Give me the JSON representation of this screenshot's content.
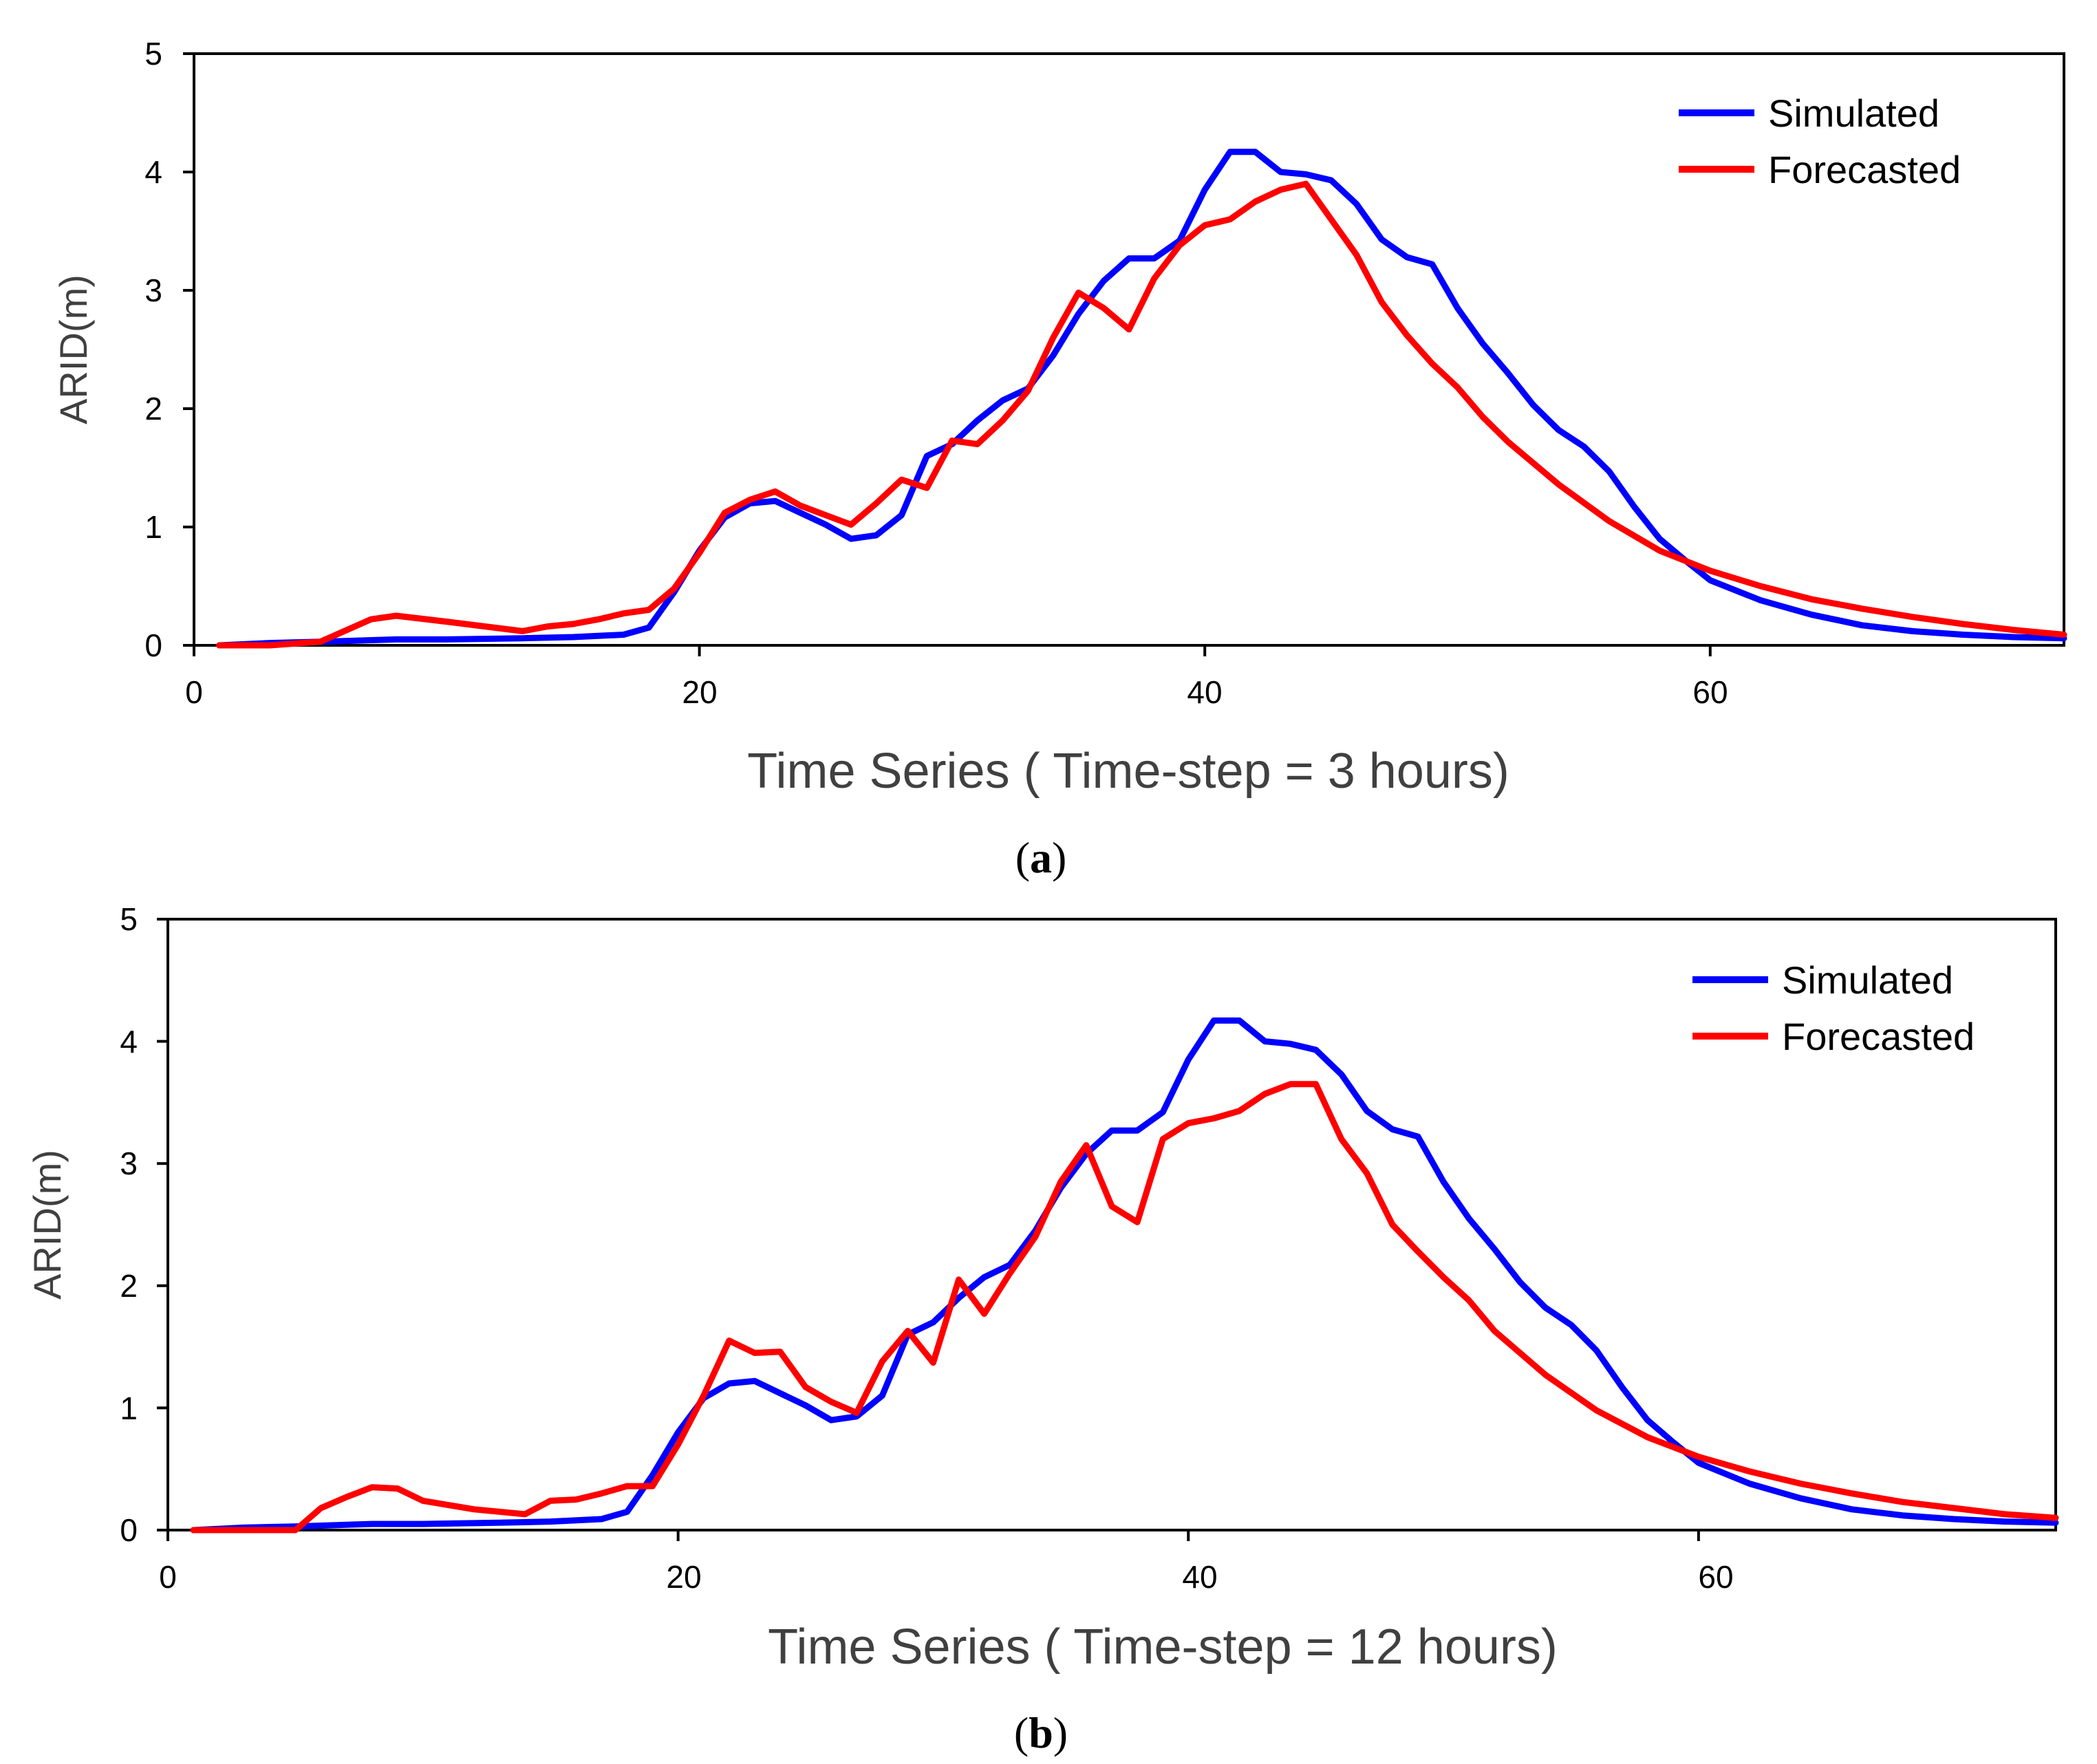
{
  "chart_data": [
    {
      "type": "line",
      "panel_label": "a",
      "xlabel": "Time Series ( Time-step =  3 hours)",
      "ylabel": "ARID(m)",
      "xlim": [
        0,
        74
      ],
      "ylim": [
        0,
        5
      ],
      "xticks": [
        0,
        20,
        40,
        60
      ],
      "yticks": [
        0,
        1,
        2,
        3,
        4,
        5
      ],
      "legend_position": "top-right",
      "series": [
        {
          "name": "Simulated",
          "color": "#0000ff",
          "x": [
            1,
            3,
            5,
            8,
            10,
            13,
            15,
            17,
            18,
            19,
            20,
            21,
            22,
            23,
            24,
            25,
            26,
            27,
            28,
            29,
            30,
            31,
            32,
            33,
            34,
            35,
            36,
            37,
            38,
            39,
            40,
            41,
            42,
            43,
            44,
            45,
            46,
            47,
            48,
            49,
            50,
            51,
            52,
            53,
            54,
            55,
            56,
            57,
            58,
            59,
            60,
            62,
            64,
            66,
            68,
            70,
            72,
            74
          ],
          "values": [
            0.0,
            0.02,
            0.03,
            0.05,
            0.05,
            0.06,
            0.07,
            0.09,
            0.15,
            0.45,
            0.8,
            1.08,
            1.2,
            1.22,
            1.12,
            1.02,
            0.9,
            0.93,
            1.1,
            1.6,
            1.7,
            1.9,
            2.07,
            2.17,
            2.45,
            2.8,
            3.08,
            3.27,
            3.27,
            3.42,
            3.85,
            4.17,
            4.17,
            4.0,
            3.98,
            3.93,
            3.73,
            3.43,
            3.28,
            3.22,
            2.85,
            2.55,
            2.3,
            2.03,
            1.82,
            1.68,
            1.47,
            1.17,
            0.9,
            0.72,
            0.55,
            0.38,
            0.26,
            0.17,
            0.12,
            0.09,
            0.07,
            0.06
          ]
        },
        {
          "name": "Forecasted",
          "color": "#ff0000",
          "x": [
            1,
            3,
            5,
            7,
            8,
            10,
            13,
            14,
            15,
            16,
            17,
            18,
            19,
            20,
            21,
            22,
            23,
            24,
            25,
            26,
            27,
            28,
            29,
            30,
            31,
            32,
            33,
            34,
            35,
            36,
            37,
            38,
            39,
            40,
            41,
            42,
            43,
            44,
            45,
            46,
            47,
            48,
            49,
            50,
            51,
            52,
            54,
            56,
            58,
            60,
            62,
            64,
            66,
            68,
            70,
            72,
            74
          ],
          "values": [
            0.0,
            0.0,
            0.03,
            0.22,
            0.25,
            0.2,
            0.12,
            0.16,
            0.18,
            0.22,
            0.27,
            0.3,
            0.48,
            0.78,
            1.12,
            1.23,
            1.3,
            1.18,
            1.1,
            1.02,
            1.2,
            1.4,
            1.33,
            1.73,
            1.7,
            1.9,
            2.15,
            2.6,
            2.98,
            2.85,
            2.67,
            3.1,
            3.38,
            3.55,
            3.6,
            3.75,
            3.85,
            3.9,
            3.6,
            3.3,
            2.9,
            2.62,
            2.38,
            2.18,
            1.93,
            1.72,
            1.36,
            1.05,
            0.8,
            0.63,
            0.5,
            0.39,
            0.31,
            0.24,
            0.18,
            0.13,
            0.09
          ]
        }
      ]
    },
    {
      "type": "line",
      "panel_label": "b",
      "xlabel": "Time Series ( Time-step =  12 hours)",
      "ylabel": "ARID(m)",
      "xlim": [
        0,
        74
      ],
      "ylim": [
        0,
        5
      ],
      "xticks": [
        0,
        20,
        40,
        60
      ],
      "yticks": [
        0,
        1,
        2,
        3,
        4,
        5
      ],
      "legend_position": "top-right",
      "series": [
        {
          "name": "Simulated",
          "color": "#0000ff",
          "x": [
            1,
            3,
            5,
            8,
            10,
            13,
            15,
            17,
            18,
            19,
            20,
            21,
            22,
            23,
            24,
            25,
            26,
            27,
            28,
            29,
            30,
            31,
            32,
            33,
            34,
            35,
            36,
            37,
            38,
            39,
            40,
            41,
            42,
            43,
            44,
            45,
            46,
            47,
            48,
            49,
            50,
            51,
            52,
            53,
            54,
            55,
            56,
            57,
            58,
            59,
            60,
            62,
            64,
            66,
            68,
            70,
            72,
            74
          ],
          "values": [
            0.0,
            0.02,
            0.03,
            0.05,
            0.05,
            0.06,
            0.07,
            0.09,
            0.15,
            0.45,
            0.8,
            1.08,
            1.2,
            1.22,
            1.12,
            1.02,
            0.9,
            0.93,
            1.1,
            1.6,
            1.7,
            1.9,
            2.07,
            2.17,
            2.45,
            2.8,
            3.08,
            3.27,
            3.27,
            3.42,
            3.85,
            4.17,
            4.17,
            4.0,
            3.98,
            3.93,
            3.73,
            3.43,
            3.28,
            3.22,
            2.85,
            2.55,
            2.3,
            2.03,
            1.82,
            1.68,
            1.47,
            1.17,
            0.9,
            0.72,
            0.55,
            0.38,
            0.26,
            0.17,
            0.12,
            0.09,
            0.07,
            0.06
          ]
        },
        {
          "name": "Forecasted",
          "color": "#ff0000",
          "x": [
            1,
            3,
            5,
            6,
            7,
            8,
            9,
            10,
            12,
            14,
            15,
            16,
            17,
            18,
            19,
            20,
            21,
            22,
            23,
            24,
            25,
            26,
            27,
            28,
            29,
            30,
            31,
            32,
            33,
            34,
            35,
            36,
            37,
            38,
            39,
            40,
            41,
            42,
            43,
            44,
            45,
            46,
            47,
            48,
            49,
            50,
            51,
            52,
            54,
            56,
            58,
            60,
            62,
            64,
            66,
            68,
            70,
            72,
            74
          ],
          "values": [
            0.0,
            0.0,
            0.0,
            0.18,
            0.27,
            0.35,
            0.34,
            0.24,
            0.17,
            0.13,
            0.24,
            0.25,
            0.3,
            0.36,
            0.36,
            0.7,
            1.1,
            1.55,
            1.45,
            1.46,
            1.17,
            1.05,
            0.96,
            1.38,
            1.63,
            1.37,
            2.05,
            1.77,
            2.1,
            2.4,
            2.85,
            3.15,
            2.65,
            2.52,
            3.2,
            3.33,
            3.37,
            3.43,
            3.57,
            3.65,
            3.65,
            3.2,
            2.92,
            2.5,
            2.28,
            2.07,
            1.88,
            1.63,
            1.27,
            0.98,
            0.76,
            0.6,
            0.48,
            0.38,
            0.3,
            0.23,
            0.18,
            0.13,
            0.1
          ]
        }
      ]
    }
  ]
}
